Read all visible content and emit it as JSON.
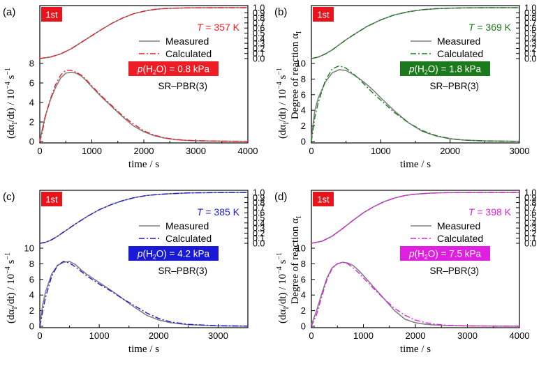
{
  "figure": {
    "right_axis_label": "Degree of reaction α",
    "right_axis_label_sub": "I",
    "left_axis_label_prefix": "(dα",
    "left_axis_label_sub": "I",
    "left_axis_label_suffix": "/dt) / 10",
    "left_axis_label_exp": "−4",
    "left_axis_label_unit": " s",
    "left_axis_label_unit_exp": "−1",
    "x_axis_label": "time / s",
    "legend_measured": "Measured",
    "legend_calculated": "Calculated",
    "model_label": "SR–PBR(3)",
    "cycle_badge": "1st",
    "measured_color": "#808080",
    "cycle_badge_color": "#e8141c"
  },
  "chart_data": [
    {
      "type": "line",
      "panel": "(a)",
      "temperature": "T = 357 K",
      "water_pressure": "p(H2O) = 0.8 kPa",
      "pressure_value": "0.8 kPa",
      "accent": "#ee1c25",
      "dash": "8 3 2 3",
      "xlim": [
        0,
        4000
      ],
      "xticks": [
        0,
        1000,
        2000,
        3000,
        4000
      ],
      "rate_ticks": [
        0,
        2,
        4,
        6,
        8
      ],
      "rate_max_label": 8,
      "alpha_ticks": [
        "0.0",
        "0.1",
        "0.2",
        "0.3",
        "0.4",
        "0.5",
        "0.6",
        "0.7",
        "0.8",
        "0.9",
        "1.0"
      ],
      "alpha": {
        "x": [
          0,
          200,
          400,
          600,
          800,
          1000,
          1200,
          1400,
          1600,
          1800,
          2000,
          2200,
          2400,
          2600,
          2800,
          3000,
          3500,
          4000
        ],
        "measured": [
          0.0,
          0.03,
          0.09,
          0.19,
          0.32,
          0.45,
          0.58,
          0.7,
          0.8,
          0.88,
          0.93,
          0.965,
          0.983,
          0.99,
          0.995,
          0.997,
          0.999,
          1.0
        ],
        "calculated": [
          0.0,
          0.03,
          0.09,
          0.19,
          0.32,
          0.45,
          0.58,
          0.7,
          0.8,
          0.88,
          0.93,
          0.965,
          0.983,
          0.99,
          0.995,
          0.997,
          0.999,
          1.0
        ]
      },
      "rate": {
        "x": [
          0,
          50,
          100,
          200,
          300,
          400,
          500,
          600,
          700,
          800,
          900,
          1000,
          1200,
          1400,
          1600,
          1800,
          2000,
          2200,
          2400,
          2600,
          2800,
          3000,
          3500,
          4000
        ],
        "measured": [
          0.1,
          1.3,
          2.5,
          4.2,
          5.5,
          6.5,
          7.0,
          7.1,
          7.0,
          6.7,
          6.2,
          5.6,
          4.5,
          3.5,
          2.5,
          1.6,
          1.0,
          0.6,
          0.35,
          0.2,
          0.12,
          0.08,
          0.04,
          0.02
        ],
        "calculated": [
          0.0,
          1.0,
          2.4,
          4.3,
          5.8,
          6.8,
          7.3,
          7.3,
          7.1,
          6.8,
          6.3,
          5.7,
          4.6,
          3.6,
          2.6,
          1.8,
          1.1,
          0.65,
          0.38,
          0.22,
          0.13,
          0.08,
          0.03,
          0.01
        ]
      }
    },
    {
      "type": "line",
      "panel": "(b)",
      "temperature": "T = 369 K",
      "water_pressure": "p(H2O) = 1.8 kPa",
      "pressure_value": "1.8 kPa",
      "accent": "#1b7a1b",
      "dash": "8 3 2 3",
      "xlim": [
        0,
        3000
      ],
      "xticks": [
        0,
        1000,
        2000,
        3000
      ],
      "rate_ticks": [
        0,
        2,
        4,
        6,
        8,
        10
      ],
      "rate_max_label": 10,
      "alpha_ticks": [
        "0.0",
        "0.1",
        "0.2",
        "0.3",
        "0.4",
        "0.5",
        "0.6",
        "0.7",
        "0.8",
        "0.9",
        "1.0"
      ],
      "alpha": {
        "x": [
          0,
          100,
          200,
          300,
          400,
          500,
          600,
          800,
          1000,
          1200,
          1400,
          1600,
          1800,
          2000,
          2200,
          2500,
          3000
        ],
        "measured": [
          0.0,
          0.03,
          0.09,
          0.17,
          0.27,
          0.37,
          0.46,
          0.63,
          0.76,
          0.86,
          0.92,
          0.96,
          0.98,
          0.99,
          0.995,
          0.999,
          1.0
        ],
        "calculated": [
          0.0,
          0.03,
          0.09,
          0.17,
          0.27,
          0.37,
          0.46,
          0.63,
          0.76,
          0.86,
          0.92,
          0.96,
          0.98,
          0.99,
          0.995,
          0.999,
          1.0
        ]
      },
      "rate": {
        "x": [
          0,
          25,
          50,
          100,
          200,
          300,
          400,
          500,
          600,
          700,
          800,
          900,
          1000,
          1200,
          1400,
          1600,
          1800,
          2000,
          2200,
          2500,
          3000
        ],
        "measured": [
          0.2,
          2.3,
          4.0,
          5.6,
          7.6,
          8.8,
          9.2,
          9.1,
          8.6,
          8.0,
          7.3,
          6.5,
          5.6,
          3.9,
          2.4,
          1.3,
          0.7,
          0.35,
          0.18,
          0.08,
          0.03
        ],
        "calculated": [
          0.0,
          1.6,
          3.1,
          5.0,
          7.8,
          9.3,
          9.7,
          9.4,
          8.7,
          7.9,
          7.0,
          6.1,
          5.3,
          3.7,
          2.4,
          1.4,
          0.75,
          0.38,
          0.18,
          0.06,
          0.01
        ]
      }
    },
    {
      "type": "line",
      "panel": "(c)",
      "temperature": "T = 385 K",
      "water_pressure": "p(H2O) = 4.2 kPa",
      "pressure_value": "4.2 kPa",
      "accent": "#1a1ad6",
      "dash": "8 3 2 3",
      "xlim": [
        0,
        3500
      ],
      "xticks": [
        0,
        1000,
        2000,
        3000
      ],
      "rate_ticks": [
        0,
        2,
        4,
        6,
        8,
        10
      ],
      "rate_max_label": 10,
      "alpha_ticks": [
        "0.0",
        "0.1",
        "0.2",
        "0.3",
        "0.4",
        "0.5",
        "0.6",
        "0.7",
        "0.8",
        "0.9",
        "1.0"
      ],
      "alpha": {
        "x": [
          0,
          100,
          200,
          300,
          400,
          500,
          600,
          800,
          1000,
          1200,
          1400,
          1600,
          1800,
          2000,
          2200,
          2500,
          3000,
          3500
        ],
        "measured": [
          0.0,
          0.02,
          0.07,
          0.14,
          0.22,
          0.3,
          0.38,
          0.53,
          0.66,
          0.76,
          0.84,
          0.9,
          0.94,
          0.96,
          0.975,
          0.99,
          0.998,
          1.0
        ],
        "calculated": [
          0.0,
          0.02,
          0.07,
          0.14,
          0.22,
          0.3,
          0.38,
          0.53,
          0.66,
          0.76,
          0.84,
          0.9,
          0.94,
          0.96,
          0.975,
          0.99,
          0.998,
          1.0
        ]
      },
      "rate": {
        "x": [
          0,
          25,
          50,
          100,
          200,
          300,
          400,
          500,
          600,
          700,
          800,
          900,
          1000,
          1200,
          1400,
          1600,
          1800,
          2000,
          2200,
          2500,
          3000,
          3500
        ],
        "measured": [
          0.3,
          1.5,
          2.8,
          4.5,
          6.7,
          7.8,
          8.2,
          8.3,
          7.9,
          7.2,
          6.6,
          6.1,
          5.6,
          4.6,
          3.5,
          2.4,
          1.4,
          0.8,
          0.45,
          0.2,
          0.05,
          0.02
        ],
        "calculated": [
          0.0,
          0.9,
          2.0,
          3.8,
          6.4,
          7.8,
          8.3,
          8.1,
          7.6,
          7.0,
          6.4,
          5.9,
          5.4,
          4.5,
          3.5,
          2.6,
          1.7,
          1.0,
          0.55,
          0.25,
          0.07,
          0.02
        ]
      }
    },
    {
      "type": "line",
      "panel": "(d)",
      "temperature": "T = 398 K",
      "water_pressure": "p(H2O) = 7.5 kPa",
      "pressure_value": "7.5 kPa",
      "accent": "#e020e0",
      "dash": "8 3 2 3",
      "xlim": [
        0,
        4000
      ],
      "xticks": [
        0,
        1000,
        2000,
        3000,
        4000
      ],
      "rate_ticks": [
        0,
        2,
        4,
        6,
        8,
        10
      ],
      "rate_max_label": 10,
      "alpha_ticks": [
        "0.0",
        "0.1",
        "0.2",
        "0.3",
        "0.4",
        "0.5",
        "0.6",
        "0.7",
        "0.8",
        "0.9",
        "1.0"
      ],
      "alpha": {
        "x": [
          0,
          200,
          400,
          600,
          800,
          1000,
          1200,
          1400,
          1600,
          1800,
          2000,
          2200,
          2400,
          2600,
          3000,
          3500,
          4000
        ],
        "measured": [
          0.0,
          0.04,
          0.14,
          0.29,
          0.45,
          0.6,
          0.72,
          0.82,
          0.89,
          0.94,
          0.965,
          0.98,
          0.99,
          0.995,
          0.998,
          1.0,
          1.0
        ],
        "calculated": [
          0.0,
          0.04,
          0.14,
          0.29,
          0.45,
          0.6,
          0.72,
          0.82,
          0.89,
          0.94,
          0.965,
          0.98,
          0.99,
          0.995,
          0.998,
          1.0,
          1.0
        ]
      },
      "rate": {
        "x": [
          0,
          100,
          200,
          300,
          400,
          500,
          600,
          700,
          800,
          900,
          1000,
          1200,
          1400,
          1600,
          1800,
          2000,
          2200,
          2400,
          2600,
          3000,
          3500,
          4000
        ],
        "measured": [
          0.2,
          2.0,
          4.2,
          6.2,
          7.5,
          8.0,
          8.2,
          8.1,
          7.8,
          7.2,
          6.5,
          5.0,
          3.5,
          2.0,
          0.9,
          0.45,
          0.25,
          0.15,
          0.1,
          0.05,
          0.03,
          0.02
        ],
        "calculated": [
          0.0,
          1.5,
          3.8,
          6.0,
          7.4,
          8.0,
          8.2,
          8.0,
          7.5,
          6.9,
          6.2,
          4.8,
          3.5,
          2.3,
          1.4,
          0.8,
          0.45,
          0.25,
          0.13,
          0.04,
          0.01,
          0.0
        ]
      }
    }
  ]
}
